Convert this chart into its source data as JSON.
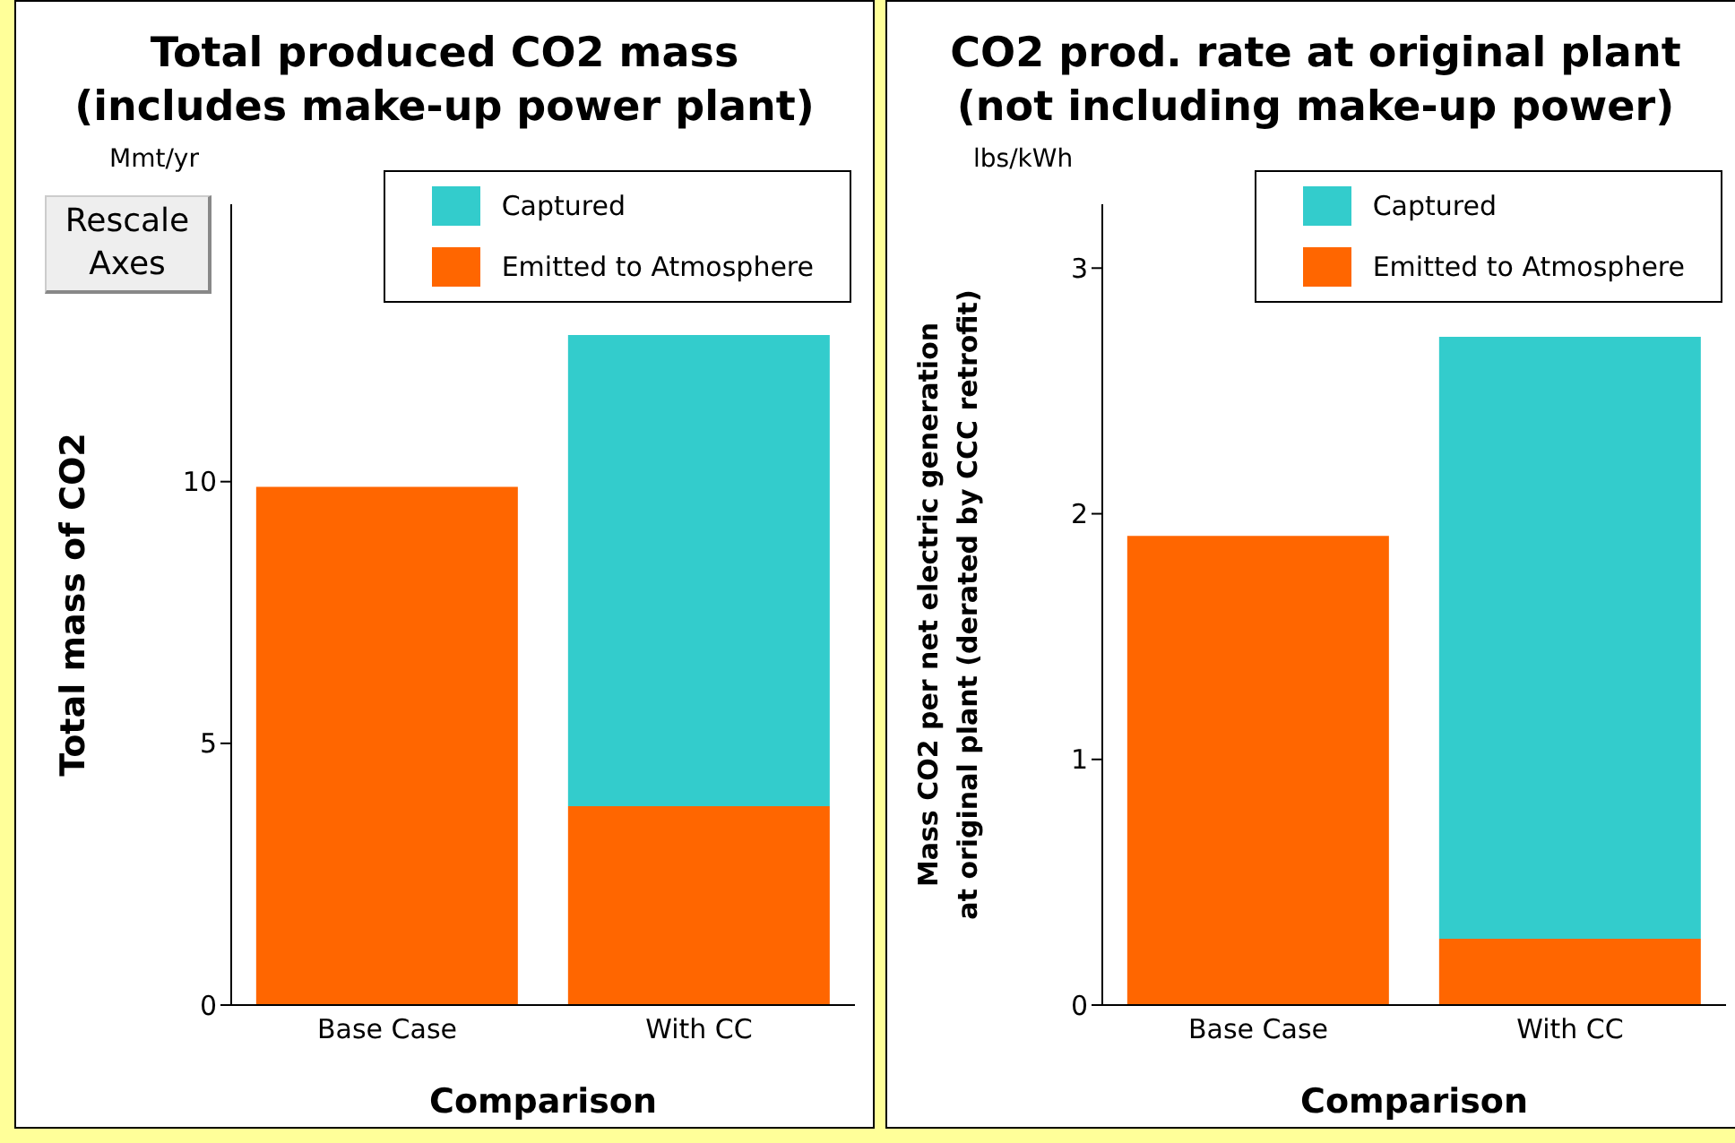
{
  "chart_data": [
    {
      "type": "bar",
      "title": "Total produced CO2 mass\n(includes make-up power plant)",
      "xlabel": "Comparison",
      "ylabel": "Total mass of CO2",
      "annotations": [
        "Mmt/yr",
        "Rescale\nAxes"
      ],
      "categories": [
        "Base Case",
        "With CC"
      ],
      "stacked": true,
      "series": [
        {
          "name": "Emitted to Atmosphere",
          "color": "#ff6600",
          "values": [
            9.9,
            3.8
          ]
        },
        {
          "name": "Captured",
          "color": "#33cccc",
          "values": [
            null,
            9.0
          ]
        }
      ],
      "ylim": [
        0,
        15.3
      ],
      "yticks": [
        0,
        5,
        10
      ],
      "grid": false,
      "legend": "top right"
    },
    {
      "type": "bar",
      "title": "CO2 prod. rate at original plant\n(not including make-up power)",
      "xlabel": "Comparison",
      "ylabel": "Mass CO2 per net electric generation\nat original plant (derated by CCC retrofit)",
      "annotations": [
        "lbs/kWh"
      ],
      "categories": [
        "Base Case",
        "With CC"
      ],
      "stacked": true,
      "series": [
        {
          "name": "Emitted to Atmosphere",
          "color": "#ff6600",
          "values": [
            1.91,
            0.27
          ]
        },
        {
          "name": "Captured",
          "color": "#33cccc",
          "values": [
            null,
            2.45
          ]
        }
      ],
      "ylim": [
        0,
        3.26
      ],
      "yticks": [
        0,
        1,
        2,
        3
      ],
      "grid": false,
      "legend": "top right"
    }
  ]
}
